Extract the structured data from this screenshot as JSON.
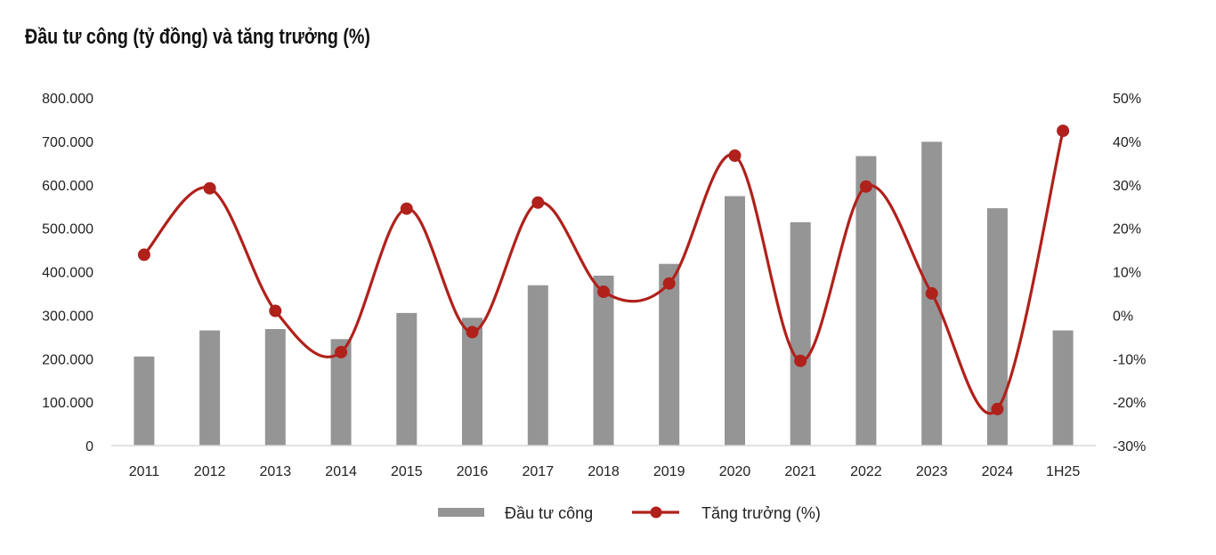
{
  "chart_data": {
    "type": "bar+line",
    "title": "Đầu tư công (tỷ đồng) và tăng trưởng (%)",
    "categories": [
      "2011",
      "2012",
      "2013",
      "2014",
      "2015",
      "2016",
      "2017",
      "2018",
      "2019",
      "2020",
      "2021",
      "2022",
      "2023",
      "2024",
      "1H25"
    ],
    "series": [
      {
        "name": "Đầu tư công",
        "type": "bar",
        "axis": "left",
        "color": "#959595",
        "values": [
          205000,
          265000,
          268000,
          245000,
          305000,
          294000,
          369000,
          391000,
          418000,
          574000,
          514000,
          666000,
          699000,
          546000,
          265000
        ]
      },
      {
        "name": "Tăng trưởng (%)",
        "type": "line",
        "axis": "right",
        "color": "#B0211B",
        "smooth": true,
        "markers": true,
        "values": [
          13.9,
          29.2,
          1.0,
          -8.5,
          24.5,
          -3.9,
          25.9,
          5.4,
          7.3,
          36.7,
          -10.5,
          29.6,
          5.0,
          -21.6,
          42.4
        ]
      }
    ],
    "y_left": {
      "ylim": [
        0,
        800000
      ],
      "ticks": [
        0,
        100000,
        200000,
        300000,
        400000,
        500000,
        600000,
        700000,
        800000
      ],
      "tick_labels": [
        "0",
        "100.000",
        "200.000",
        "300.000",
        "400.000",
        "500.000",
        "600.000",
        "700.000",
        "800.000"
      ]
    },
    "y_right": {
      "ylim": [
        -30,
        50
      ],
      "ticks": [
        -30,
        -20,
        -10,
        0,
        10,
        20,
        30,
        40,
        50
      ],
      "tick_labels": [
        "-30%",
        "-20%",
        "-10%",
        "0%",
        "10%",
        "20%",
        "30%",
        "40%",
        "50%"
      ]
    },
    "xlabel": "",
    "ylabel": "",
    "grid": false,
    "legend": {
      "placement": "bottom-center",
      "entries": [
        "Đầu tư công",
        "Tăng trưởng (%)"
      ]
    }
  }
}
